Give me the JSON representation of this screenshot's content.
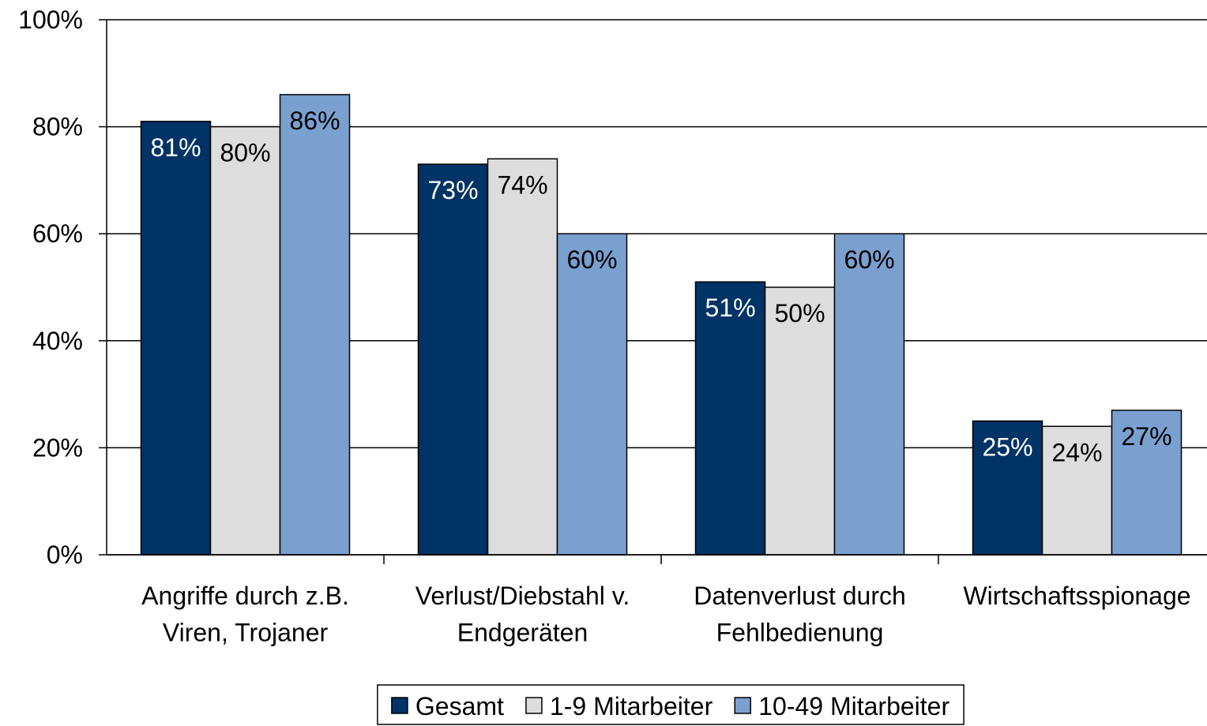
{
  "chart_data": {
    "type": "bar",
    "categories": [
      "Angriffe durch z.B.\nViren, Trojaner",
      "Verlust/Diebstahl v.\nEndgeräten",
      "Datenverlust durch\nFehlbedienung",
      "Wirtschaftsspionage"
    ],
    "series": [
      {
        "name": "Gesamt",
        "color": "#003366",
        "values": [
          81,
          73,
          51,
          25
        ],
        "value_labels": [
          "81%",
          "73%",
          "51%",
          "25%"
        ]
      },
      {
        "name": "1-9 Mitarbeiter",
        "color": "#dddddd",
        "values": [
          80,
          74,
          50,
          24
        ],
        "value_labels": [
          "80%",
          "74%",
          "50%",
          "24%"
        ]
      },
      {
        "name": "10-49 Mitarbeiter",
        "color": "#7aa0d0",
        "values": [
          86,
          60,
          60,
          27
        ],
        "value_labels": [
          "86%",
          "60%",
          "60%",
          "27%"
        ]
      }
    ],
    "ylim": [
      0,
      100
    ],
    "yticks": [
      {
        "value": 0,
        "label": "0%"
      },
      {
        "value": 20,
        "label": "20%"
      },
      {
        "value": 40,
        "label": "40%"
      },
      {
        "value": 60,
        "label": "60%"
      },
      {
        "value": 80,
        "label": "80%"
      },
      {
        "value": 100,
        "label": "100%"
      }
    ],
    "grid": true,
    "legend": "bottom"
  }
}
